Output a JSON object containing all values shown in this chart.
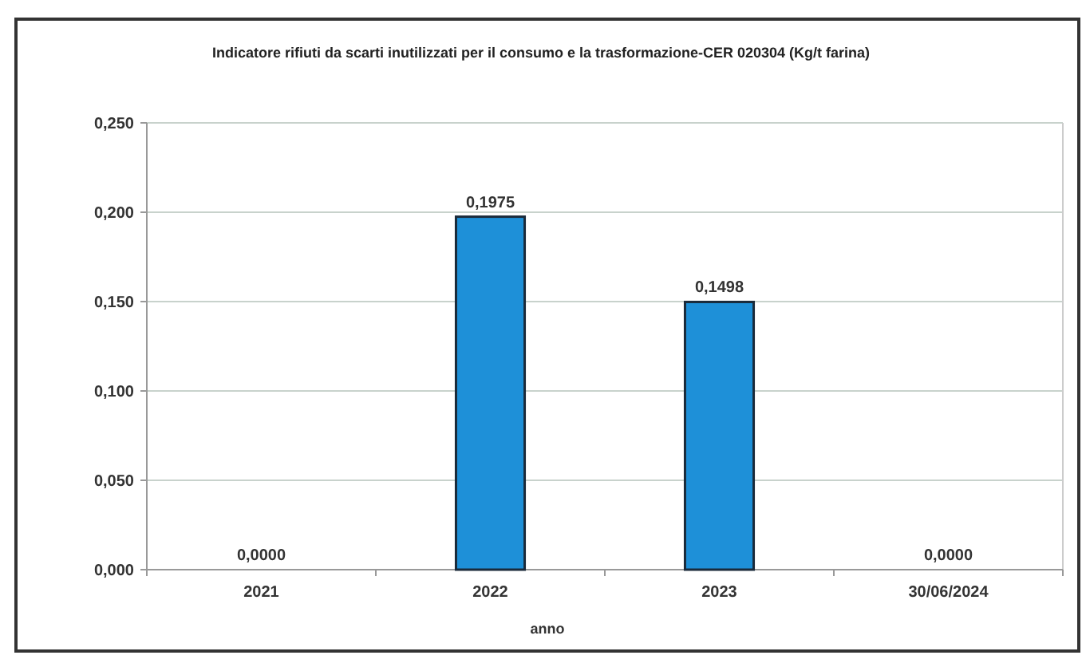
{
  "chart_data": {
    "type": "bar",
    "title": "Indicatore rifiuti da scarti inutilizzati per il consumo e la trasformazione-CER 020304 (Kg/t farina)",
    "xlabel": "anno",
    "categories": [
      "2021",
      "2022",
      "2023",
      "30/06/2024"
    ],
    "values": [
      0,
      0.1975,
      0.1498,
      0
    ],
    "value_labels": [
      "0,0000",
      "0,1975",
      "0,1498",
      "0,0000"
    ],
    "color": "#1e90d8",
    "ylim": [
      0,
      0.25
    ],
    "yticks": [
      {
        "value": 0,
        "label": "0,000"
      },
      {
        "value": 0.05,
        "label": "0,050"
      },
      {
        "value": 0.1,
        "label": "0,100"
      },
      {
        "value": 0.15,
        "label": "0,150"
      },
      {
        "value": 0.2,
        "label": "0,200"
      },
      {
        "value": 0.25,
        "label": "0,250"
      }
    ],
    "grid": "y"
  }
}
